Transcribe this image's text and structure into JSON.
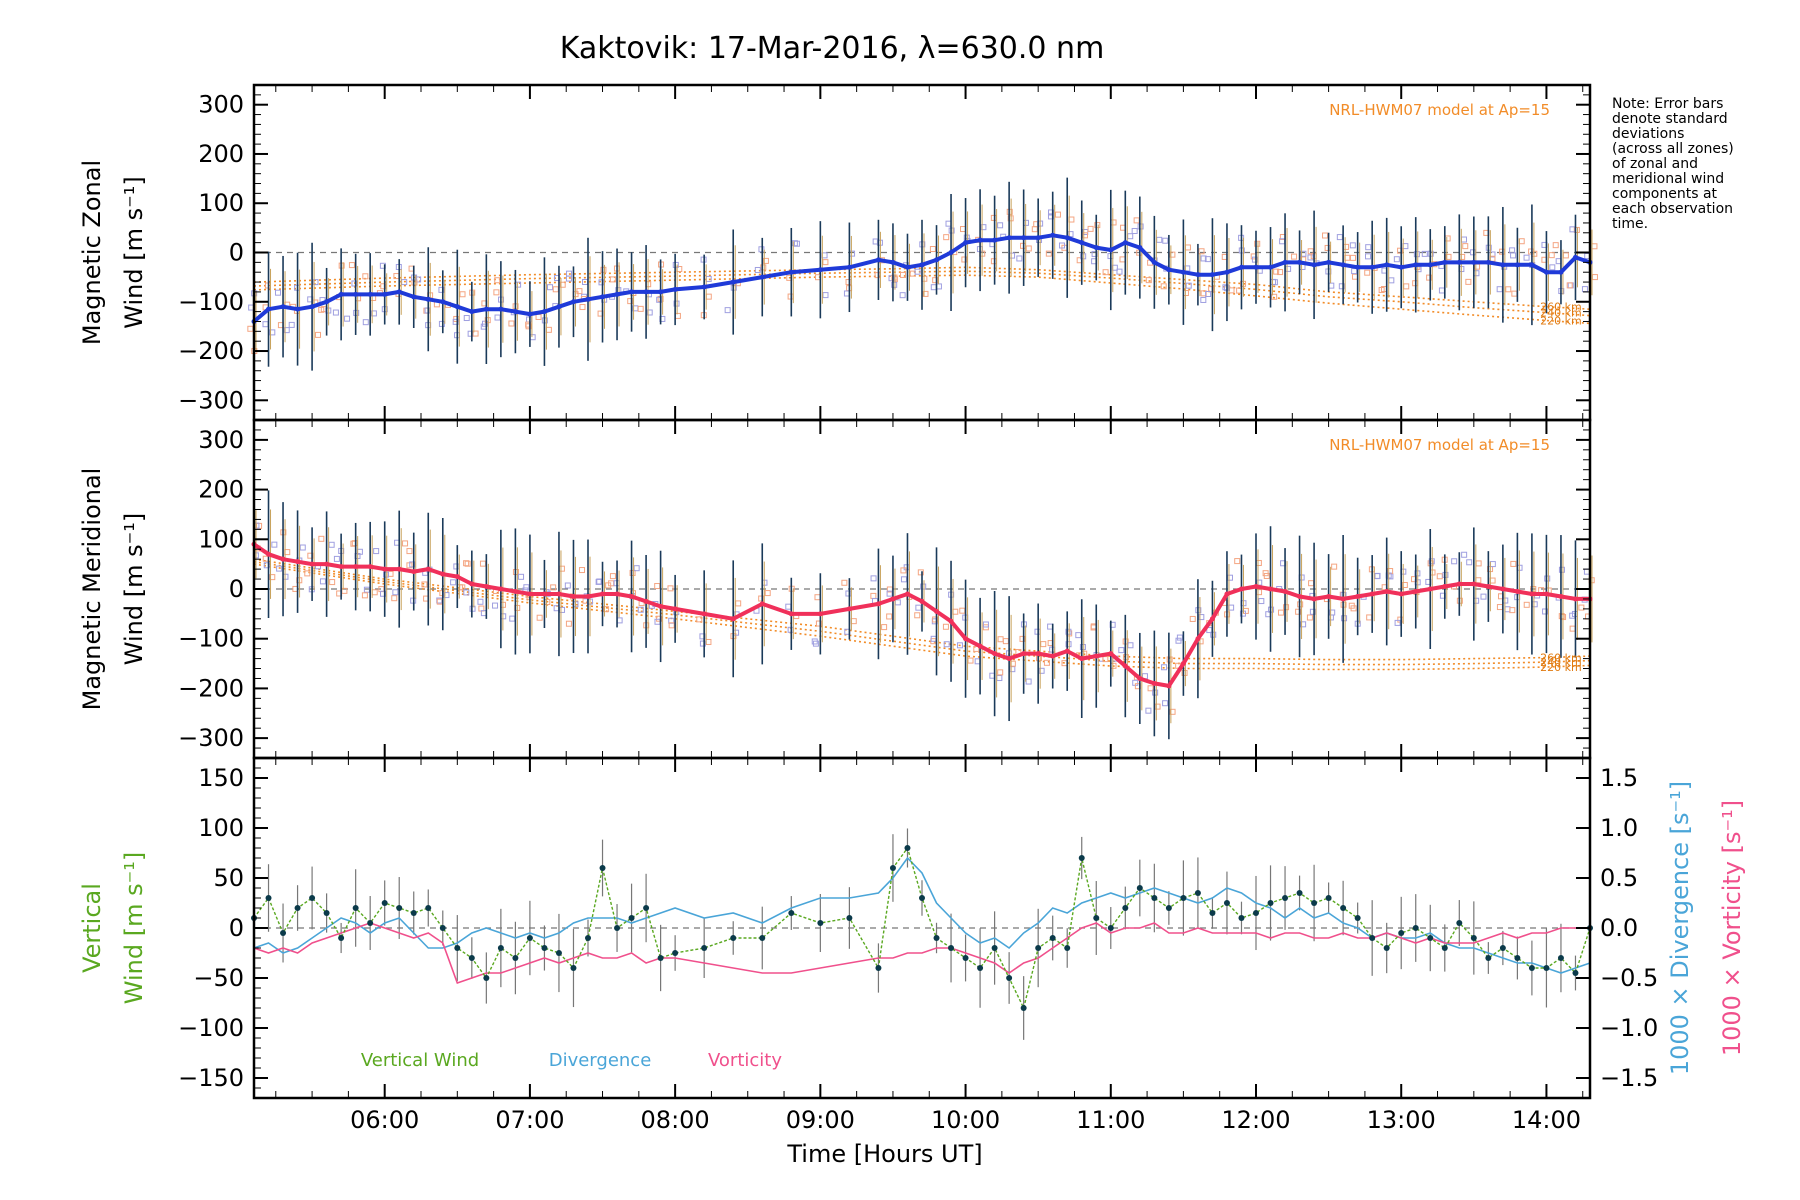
{
  "title": "Kaktovik: 17-Mar-2016, λ=630.0 nm",
  "note": "Note: Error bars denote standard deviations (across all zones) of zonal and meridional wind components at each observation time.",
  "note_lines": [
    "Note: Error bars",
    "denote standard",
    "deviations",
    "(across all zones)",
    "of zonal and",
    "meridional wind",
    "components at",
    "each observation",
    "time."
  ],
  "xlabel": "Time [Hours UT]",
  "colors": {
    "zonal": "#1f3ad8",
    "meridional": "#f0305a",
    "model": "#f28c28",
    "vertical": "#5aa820",
    "divergence": "#4aa5d8",
    "vorticity": "#f0508c",
    "scatter_orange": "#f4a582",
    "scatter_purple": "#9f9fe0",
    "errorbar": "#1a3a5a"
  },
  "chart_data": [
    {
      "type": "line",
      "panel": "zonal",
      "ylabel_line1": "Magnetic Zonal",
      "ylabel_line2": "Wind [m s⁻¹]",
      "model_label": "NRL-HWM07 model at Ap=15",
      "altitude_labels": [
        "260 km",
        "240 km",
        "220 km"
      ],
      "xlim": [
        5.1,
        14.3
      ],
      "ylim": [
        -340,
        340
      ],
      "yticks": [
        -300,
        -200,
        -100,
        0,
        100,
        200,
        300
      ],
      "ytick_labels": [
        "−300",
        "−200",
        "−100",
        "0",
        "100",
        "200",
        "300"
      ],
      "x": [
        5.1,
        5.2,
        5.3,
        5.4,
        5.5,
        5.6,
        5.7,
        5.8,
        5.9,
        6.0,
        6.1,
        6.2,
        6.3,
        6.4,
        6.5,
        6.6,
        6.7,
        6.8,
        6.9,
        7.0,
        7.1,
        7.2,
        7.3,
        7.4,
        7.5,
        7.6,
        7.7,
        7.8,
        7.9,
        8.0,
        8.2,
        8.4,
        8.6,
        8.8,
        9.0,
        9.2,
        9.4,
        9.5,
        9.6,
        9.7,
        9.8,
        9.9,
        10.0,
        10.1,
        10.2,
        10.3,
        10.4,
        10.5,
        10.6,
        10.7,
        10.8,
        10.9,
        11.0,
        11.1,
        11.2,
        11.3,
        11.4,
        11.5,
        11.6,
        11.7,
        11.8,
        11.9,
        12.0,
        12.1,
        12.2,
        12.3,
        12.4,
        12.5,
        12.6,
        12.7,
        12.8,
        12.9,
        13.0,
        13.1,
        13.2,
        13.3,
        13.4,
        13.5,
        13.6,
        13.7,
        13.8,
        13.9,
        14.0,
        14.1,
        14.2,
        14.3
      ],
      "series": [
        {
          "values": [
            -140,
            -115,
            -110,
            -115,
            -110,
            -100,
            -85,
            -85,
            -85,
            -85,
            -80,
            -90,
            -95,
            -100,
            -110,
            -120,
            -115,
            -115,
            -120,
            -125,
            -120,
            -110,
            -100,
            -95,
            -90,
            -85,
            -80,
            -80,
            -80,
            -75,
            -70,
            -60,
            -50,
            -40,
            -35,
            -30,
            -15,
            -20,
            -30,
            -25,
            -15,
            0,
            20,
            25,
            25,
            30,
            30,
            30,
            35,
            30,
            20,
            10,
            5,
            20,
            10,
            -20,
            -35,
            -40,
            -45,
            -45,
            -40,
            -30,
            -30,
            -30,
            -20,
            -20,
            -25,
            -20,
            -25,
            -30,
            -30,
            -25,
            -30,
            -25,
            -25,
            -20,
            -20,
            -20,
            -20,
            -25,
            -25,
            -25,
            -40,
            -40,
            -10,
            -20
          ]
        }
      ],
      "model": {
        "name": "NRL-HWM07 model at Ap=15",
        "x": [
          5.1,
          6.0,
          7.0,
          8.0,
          9.0,
          9.5,
          10.0,
          10.5,
          11.0,
          11.5,
          12.0,
          12.5,
          13.0,
          13.5,
          14.0,
          14.3
        ],
        "series": [
          {
            "name": "260 km",
            "values": [
              -60,
              -52,
              -45,
              -40,
              -35,
              -33,
              -30,
              -35,
              -45,
              -55,
              -65,
              -80,
              -90,
              -100,
              -110,
              -115
            ]
          },
          {
            "name": "240 km",
            "values": [
              -68,
              -60,
              -53,
              -48,
              -42,
              -40,
              -38,
              -42,
              -52,
              -63,
              -75,
              -90,
              -100,
              -112,
              -122,
              -128
            ]
          },
          {
            "name": "220 km",
            "values": [
              -76,
              -68,
              -62,
              -56,
              -50,
              -48,
              -46,
              -50,
              -62,
              -74,
              -88,
              -103,
              -115,
              -127,
              -138,
              -144
            ]
          }
        ]
      }
    },
    {
      "type": "line",
      "panel": "meridional",
      "ylabel_line1": "Magnetic Meridional",
      "ylabel_line2": "Wind [m s⁻¹]",
      "model_label": "NRL-HWM07 model at Ap=15",
      "altitude_labels": [
        "260 km",
        "240 km",
        "220 km"
      ],
      "xlim": [
        5.1,
        14.3
      ],
      "ylim": [
        -340,
        340
      ],
      "yticks": [
        -300,
        -200,
        -100,
        0,
        100,
        200,
        300
      ],
      "ytick_labels": [
        "−300",
        "−200",
        "−100",
        "0",
        "100",
        "200",
        "300"
      ],
      "x": [
        5.1,
        5.2,
        5.3,
        5.4,
        5.5,
        5.6,
        5.7,
        5.8,
        5.9,
        6.0,
        6.1,
        6.2,
        6.3,
        6.4,
        6.5,
        6.6,
        6.7,
        6.8,
        6.9,
        7.0,
        7.1,
        7.2,
        7.3,
        7.4,
        7.5,
        7.6,
        7.7,
        7.8,
        7.9,
        8.0,
        8.2,
        8.4,
        8.6,
        8.8,
        9.0,
        9.2,
        9.4,
        9.5,
        9.6,
        9.7,
        9.8,
        9.9,
        10.0,
        10.1,
        10.2,
        10.3,
        10.4,
        10.5,
        10.6,
        10.7,
        10.8,
        10.9,
        11.0,
        11.1,
        11.2,
        11.3,
        11.4,
        11.5,
        11.6,
        11.7,
        11.8,
        11.9,
        12.0,
        12.1,
        12.2,
        12.3,
        12.4,
        12.5,
        12.6,
        12.7,
        12.8,
        12.9,
        13.0,
        13.1,
        13.2,
        13.3,
        13.4,
        13.5,
        13.6,
        13.7,
        13.8,
        13.9,
        14.0,
        14.1,
        14.2,
        14.3
      ],
      "series": [
        {
          "values": [
            90,
            70,
            60,
            55,
            50,
            50,
            45,
            45,
            45,
            40,
            40,
            35,
            40,
            30,
            25,
            10,
            5,
            0,
            -5,
            -10,
            -10,
            -10,
            -15,
            -15,
            -10,
            -10,
            -15,
            -25,
            -35,
            -40,
            -50,
            -60,
            -30,
            -50,
            -50,
            -40,
            -30,
            -20,
            -10,
            -25,
            -45,
            -65,
            -100,
            -115,
            -130,
            -140,
            -130,
            -130,
            -135,
            -125,
            -140,
            -135,
            -130,
            -155,
            -180,
            -190,
            -195,
            -150,
            -100,
            -60,
            -10,
            0,
            5,
            0,
            -5,
            -15,
            -20,
            -15,
            -20,
            -15,
            -10,
            -5,
            -10,
            -5,
            0,
            5,
            10,
            10,
            5,
            0,
            -5,
            -10,
            -10,
            -15,
            -20,
            -20
          ]
        }
      ],
      "model": {
        "name": "NRL-HWM07 model at Ap=15",
        "x": [
          5.1,
          6.0,
          7.0,
          8.0,
          9.0,
          9.5,
          10.0,
          10.5,
          11.0,
          11.5,
          12.0,
          12.5,
          13.0,
          13.5,
          14.0,
          14.3
        ],
        "series": [
          {
            "name": "260 km",
            "values": [
              60,
              20,
              -15,
              -45,
              -75,
              -95,
              -115,
              -125,
              -135,
              -140,
              -140,
              -142,
              -142,
              -140,
              -138,
              -135
            ]
          },
          {
            "name": "240 km",
            "values": [
              55,
              15,
              -22,
              -52,
              -85,
              -105,
              -125,
              -135,
              -145,
              -150,
              -150,
              -152,
              -152,
              -150,
              -147,
              -144
            ]
          },
          {
            "name": "220 km",
            "values": [
              50,
              10,
              -28,
              -60,
              -95,
              -115,
              -135,
              -145,
              -155,
              -160,
              -160,
              -162,
              -162,
              -160,
              -157,
              -154
            ]
          }
        ]
      }
    },
    {
      "type": "line",
      "panel": "vertical",
      "ylabel_line1": "Vertical",
      "ylabel_line2": "Wind [m s⁻¹]",
      "y2label_divergence": "1000 × Divergence [s⁻¹]",
      "y2label_vorticity": "1000 × Vorticity [s⁻¹]",
      "xlim": [
        5.1,
        14.3
      ],
      "ylim": [
        -170,
        170
      ],
      "yticks": [
        -150,
        -100,
        -50,
        0,
        50,
        100,
        150
      ],
      "ytick_labels": [
        "−150",
        "−100",
        "−50",
        "0",
        "50",
        "100",
        "150"
      ],
      "y2lim": [
        -1.7,
        1.7
      ],
      "y2ticks": [
        -1.5,
        -1.0,
        -0.5,
        0.0,
        0.5,
        1.0,
        1.5
      ],
      "y2tick_labels": [
        "−1.5",
        "−1.0",
        "−0.5",
        "0.0",
        "0.5",
        "1.0",
        "1.5"
      ],
      "xticks": [
        6,
        7,
        8,
        9,
        10,
        11,
        12,
        13,
        14
      ],
      "xtick_labels": [
        "06:00",
        "07:00",
        "08:00",
        "09:00",
        "10:00",
        "11:00",
        "12:00",
        "13:00",
        "14:00"
      ],
      "legend": [
        {
          "label": "Vertical Wind",
          "color": "#5aa820"
        },
        {
          "label": "Divergence",
          "color": "#4aa5d8"
        },
        {
          "label": "Vorticity",
          "color": "#f0508c"
        }
      ],
      "x": [
        5.1,
        5.2,
        5.3,
        5.4,
        5.5,
        5.6,
        5.7,
        5.8,
        5.9,
        6.0,
        6.1,
        6.2,
        6.3,
        6.4,
        6.5,
        6.6,
        6.7,
        6.8,
        6.9,
        7.0,
        7.1,
        7.2,
        7.3,
        7.4,
        7.5,
        7.6,
        7.7,
        7.8,
        7.9,
        8.0,
        8.2,
        8.4,
        8.6,
        8.8,
        9.0,
        9.2,
        9.4,
        9.5,
        9.6,
        9.7,
        9.8,
        9.9,
        10.0,
        10.1,
        10.2,
        10.3,
        10.4,
        10.5,
        10.6,
        10.7,
        10.8,
        10.9,
        11.0,
        11.1,
        11.2,
        11.3,
        11.4,
        11.5,
        11.6,
        11.7,
        11.8,
        11.9,
        12.0,
        12.1,
        12.2,
        12.3,
        12.4,
        12.5,
        12.6,
        12.7,
        12.8,
        12.9,
        13.0,
        13.1,
        13.2,
        13.3,
        13.4,
        13.5,
        13.6,
        13.7,
        13.8,
        13.9,
        14.0,
        14.1,
        14.2,
        14.3
      ],
      "series": [
        {
          "name": "Vertical Wind",
          "axis": "left",
          "values": [
            10,
            30,
            -5,
            20,
            30,
            15,
            -10,
            20,
            5,
            25,
            20,
            15,
            20,
            0,
            -20,
            -30,
            -50,
            -20,
            -30,
            -10,
            -20,
            -25,
            -40,
            -10,
            60,
            0,
            10,
            20,
            -30,
            -25,
            -20,
            -10,
            -10,
            15,
            5,
            10,
            -40,
            60,
            80,
            30,
            -10,
            -20,
            -30,
            -40,
            -20,
            -50,
            -80,
            -20,
            -10,
            -20,
            70,
            10,
            0,
            20,
            40,
            30,
            20,
            30,
            35,
            15,
            25,
            10,
            15,
            25,
            30,
            35,
            25,
            30,
            20,
            10,
            -10,
            -20,
            -5,
            0,
            -10,
            -20,
            5,
            -10,
            -30,
            -20,
            -30,
            -40,
            -40,
            -30,
            -45,
            0
          ]
        },
        {
          "name": "Divergence",
          "axis": "right",
          "values": [
            -0.2,
            -0.15,
            -0.25,
            -0.2,
            -0.1,
            0.0,
            0.1,
            0.05,
            -0.05,
            0.05,
            0.1,
            -0.05,
            -0.2,
            -0.2,
            -0.15,
            -0.05,
            0.0,
            -0.05,
            -0.1,
            -0.05,
            -0.1,
            -0.05,
            0.05,
            0.1,
            0.1,
            0.1,
            0.05,
            0.1,
            0.15,
            0.2,
            0.1,
            0.15,
            0.05,
            0.2,
            0.3,
            0.3,
            0.35,
            0.5,
            0.7,
            0.55,
            0.25,
            0.1,
            -0.05,
            -0.15,
            -0.1,
            -0.2,
            -0.05,
            0.05,
            0.2,
            0.15,
            0.25,
            0.3,
            0.35,
            0.3,
            0.35,
            0.4,
            0.35,
            0.3,
            0.25,
            0.3,
            0.4,
            0.35,
            0.25,
            0.2,
            0.1,
            0.2,
            0.1,
            0.15,
            0.05,
            0.0,
            -0.1,
            -0.05,
            -0.1,
            -0.1,
            -0.05,
            -0.15,
            -0.2,
            -0.2,
            -0.25,
            -0.3,
            -0.35,
            -0.35,
            -0.4,
            -0.45,
            -0.4,
            -0.35
          ]
        },
        {
          "name": "Vorticity",
          "axis": "right",
          "values": [
            -0.2,
            -0.25,
            -0.2,
            -0.25,
            -0.15,
            -0.1,
            -0.05,
            0.0,
            0.05,
            0.0,
            -0.05,
            -0.1,
            -0.05,
            -0.15,
            -0.55,
            -0.5,
            -0.45,
            -0.45,
            -0.4,
            -0.35,
            -0.3,
            -0.35,
            -0.3,
            -0.25,
            -0.3,
            -0.3,
            -0.25,
            -0.35,
            -0.3,
            -0.3,
            -0.35,
            -0.4,
            -0.45,
            -0.45,
            -0.4,
            -0.35,
            -0.3,
            -0.3,
            -0.25,
            -0.25,
            -0.2,
            -0.2,
            -0.25,
            -0.3,
            -0.35,
            -0.45,
            -0.35,
            -0.3,
            -0.2,
            -0.1,
            0.0,
            0.05,
            -0.05,
            0.0,
            0.0,
            0.05,
            -0.05,
            -0.05,
            0.0,
            -0.05,
            -0.05,
            -0.05,
            -0.05,
            -0.1,
            -0.05,
            -0.05,
            -0.1,
            -0.1,
            -0.05,
            -0.1,
            -0.1,
            -0.05,
            -0.1,
            -0.15,
            -0.1,
            -0.15,
            -0.15,
            -0.15,
            -0.1,
            -0.05,
            -0.1,
            -0.05,
            -0.05,
            0.0,
            0.0,
            0.0
          ]
        }
      ]
    }
  ]
}
